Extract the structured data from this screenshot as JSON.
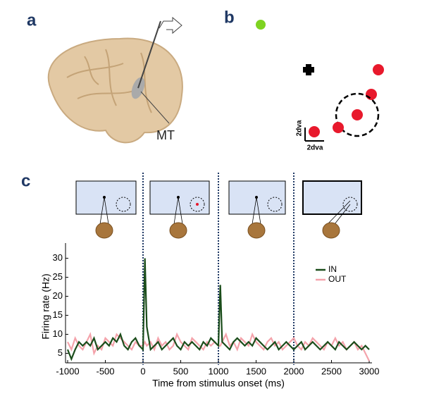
{
  "panel_labels": {
    "a": "a",
    "b": "b",
    "c": "c"
  },
  "brain_label": "MT",
  "scale_bar": {
    "vertical": "2dva",
    "horizontal": "2dva"
  },
  "chart_data": {
    "type": "line",
    "ylabel": "Firing rate (Hz)",
    "xlabel": "Time from stimulus onset (ms)",
    "x": [
      -1000,
      -950,
      -900,
      -850,
      -800,
      -750,
      -700,
      -650,
      -600,
      -550,
      -500,
      -450,
      -400,
      -350,
      -300,
      -250,
      -200,
      -150,
      -100,
      -50,
      0,
      25,
      50,
      100,
      150,
      200,
      250,
      300,
      350,
      400,
      450,
      500,
      550,
      600,
      650,
      700,
      750,
      800,
      850,
      900,
      950,
      1000,
      1025,
      1050,
      1100,
      1150,
      1200,
      1250,
      1300,
      1350,
      1400,
      1450,
      1500,
      1550,
      1600,
      1650,
      1700,
      1750,
      1800,
      1850,
      1900,
      1950,
      2000,
      2050,
      2100,
      2150,
      2200,
      2250,
      2300,
      2350,
      2400,
      2450,
      2500,
      2550,
      2600,
      2650,
      2700,
      2750,
      2800,
      2850,
      2900,
      2950,
      3000
    ],
    "series": [
      {
        "name": "IN",
        "color": "#1b4d1b",
        "values": [
          6,
          3.5,
          6,
          8,
          7,
          8,
          7,
          9,
          6,
          7,
          8,
          7,
          9,
          8,
          10,
          7,
          6,
          8,
          9,
          7,
          6,
          30,
          12,
          6,
          7,
          8,
          6,
          7,
          8,
          9,
          7,
          6,
          8,
          7,
          8,
          7,
          6,
          8,
          7,
          9,
          8,
          7,
          23,
          8,
          7,
          6,
          8,
          9,
          8,
          7,
          8,
          7,
          9,
          8,
          7,
          6,
          7,
          8,
          6,
          7,
          8,
          7,
          6,
          7,
          8,
          6,
          7,
          8,
          7,
          6,
          7,
          8,
          7,
          6,
          8,
          7,
          6,
          7,
          8,
          7,
          6,
          7,
          6
        ]
      },
      {
        "name": "OUT",
        "color": "#f4a3ab",
        "values": [
          8,
          6,
          9,
          7,
          6,
          8,
          10,
          5,
          7,
          6,
          9,
          8,
          7,
          10,
          9,
          8,
          7,
          6,
          8,
          7,
          7,
          8,
          7,
          8,
          6,
          9,
          7,
          8,
          6,
          7,
          10,
          8,
          7,
          6,
          9,
          8,
          7,
          6,
          8,
          7,
          8,
          7,
          7,
          8,
          10,
          7,
          8,
          6,
          9,
          8,
          7,
          10,
          8,
          7,
          6,
          8,
          9,
          7,
          8,
          6,
          7,
          8,
          9,
          7,
          6,
          8,
          7,
          9,
          8,
          7,
          6,
          8,
          7,
          9,
          7,
          8,
          6,
          7,
          8,
          6,
          7,
          5,
          3
        ]
      }
    ],
    "xlim": [
      -1000,
      3000
    ],
    "xticks": [
      -1000,
      -500,
      0,
      500,
      1000,
      1500,
      2000,
      2500,
      3000
    ],
    "ylim": [
      2.5,
      34
    ],
    "yticks": [
      5,
      10,
      15,
      20,
      25,
      30
    ],
    "stimulus_lines": [
      0,
      1000,
      2000
    ],
    "legend": "upper right"
  }
}
